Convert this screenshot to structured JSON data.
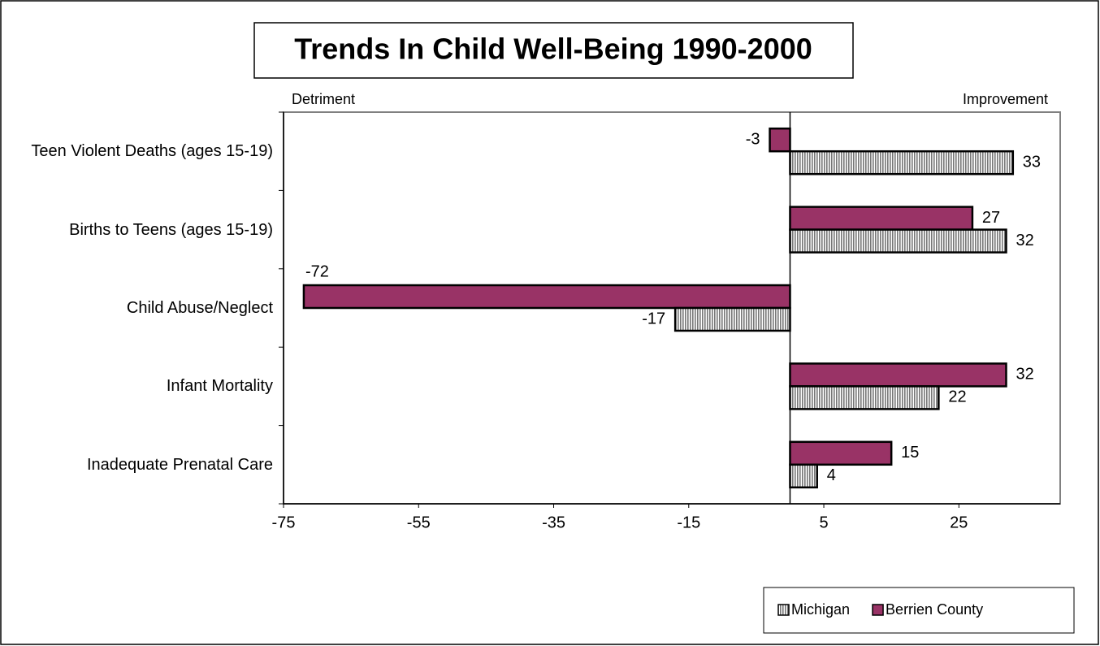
{
  "chart_data": {
    "type": "hbar",
    "title": "Trends In Child Well-Being 1990-2000",
    "left_annotation": "Detriment",
    "right_annotation": "Improvement",
    "categories": [
      "Teen Violent Deaths (ages 15-19)",
      "Births to Teens (ages 15-19)",
      "Child Abuse/Neglect",
      "Infant Mortality",
      "Inadequate Prenatal Care"
    ],
    "series": [
      {
        "name": "Berrien County",
        "color": "#993366",
        "values": [
          -3,
          27,
          -72,
          32,
          15
        ]
      },
      {
        "name": "Michigan",
        "color": "#777777",
        "values": [
          33,
          32,
          -17,
          22,
          4
        ]
      }
    ],
    "legend_order": [
      "Michigan",
      "Berrien County"
    ],
    "xlim": [
      -75,
      40
    ],
    "xticks": [
      -75,
      -55,
      -35,
      -15,
      5,
      25
    ],
    "legend_position": "bottom-right"
  }
}
